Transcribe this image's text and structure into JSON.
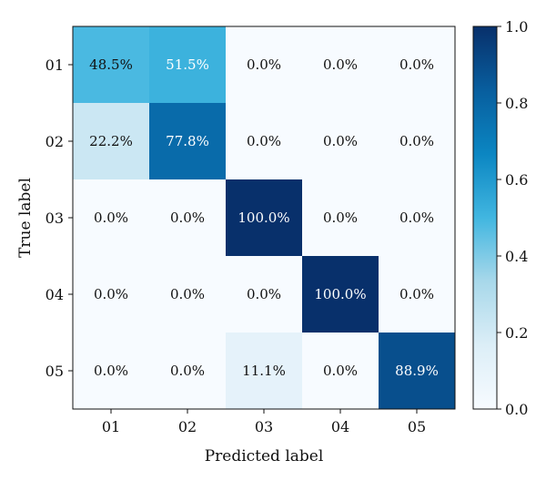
{
  "chart_data": {
    "type": "heatmap",
    "title": "",
    "xlabel": "Predicted label",
    "ylabel": "True label",
    "x_categories": [
      "01",
      "02",
      "03",
      "04",
      "05"
    ],
    "y_categories": [
      "01",
      "02",
      "03",
      "04",
      "05"
    ],
    "values": [
      [
        0.485,
        0.515,
        0.0,
        0.0,
        0.0
      ],
      [
        0.222,
        0.778,
        0.0,
        0.0,
        0.0
      ],
      [
        0.0,
        0.0,
        1.0,
        0.0,
        0.0
      ],
      [
        0.0,
        0.0,
        0.0,
        1.0,
        0.0
      ],
      [
        0.0,
        0.0,
        0.111,
        0.0,
        0.889
      ]
    ],
    "cell_labels": [
      [
        "48.5%",
        "51.5%",
        "0.0%",
        "0.0%",
        "0.0%"
      ],
      [
        "22.2%",
        "77.8%",
        "0.0%",
        "0.0%",
        "0.0%"
      ],
      [
        "0.0%",
        "0.0%",
        "100.0%",
        "0.0%",
        "0.0%"
      ],
      [
        "0.0%",
        "0.0%",
        "0.0%",
        "100.0%",
        "0.0%"
      ],
      [
        "0.0%",
        "0.0%",
        "11.1%",
        "0.0%",
        "88.9%"
      ]
    ],
    "colorbar": {
      "range": [
        0.0,
        1.0
      ],
      "ticks": [
        "0.0",
        "0.2",
        "0.4",
        "0.6",
        "0.8",
        "1.0"
      ],
      "colormap": [
        "#f7fbff",
        "#dceef7",
        "#a8d8ea",
        "#41b6e0",
        "#0b86c2",
        "#085e9e",
        "#08306b"
      ]
    },
    "grid": false
  }
}
